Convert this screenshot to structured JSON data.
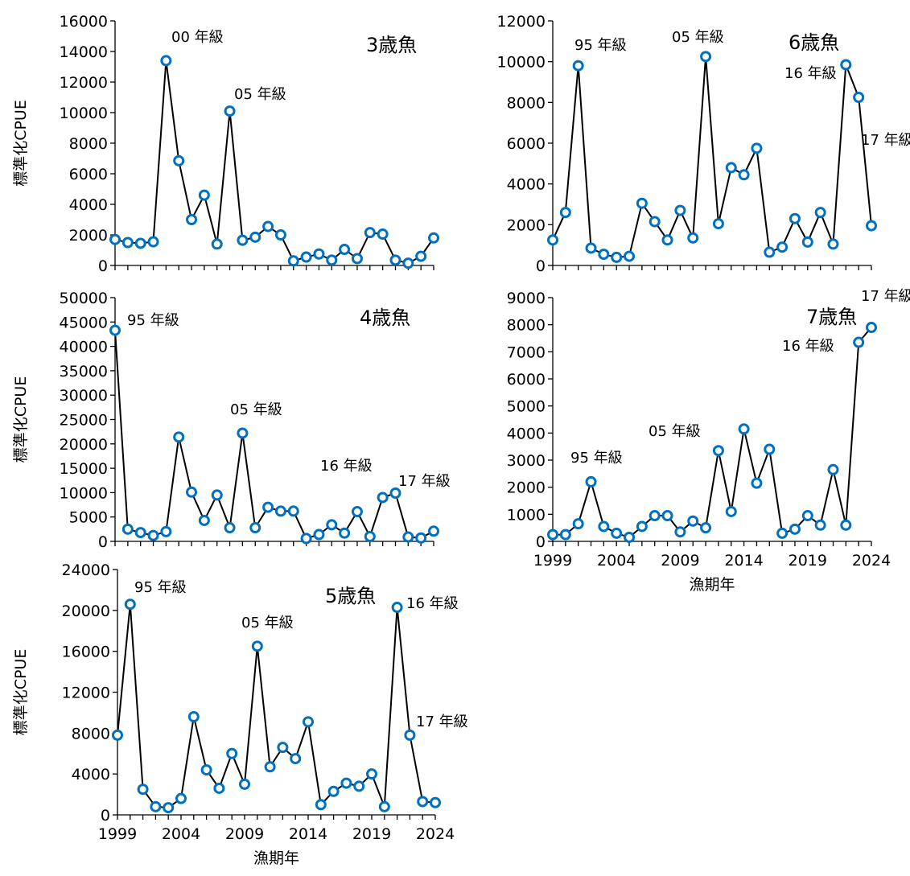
{
  "chart_data": [
    {
      "type": "line",
      "title": "3歳魚",
      "ylabel": "標準化CPUE",
      "xlabel": "",
      "x": [
        1999,
        2000,
        2001,
        2002,
        2003,
        2004,
        2005,
        2006,
        2007,
        2008,
        2009,
        2010,
        2011,
        2012,
        2013,
        2014,
        2015,
        2016,
        2017,
        2018,
        2019,
        2020,
        2021,
        2022,
        2023,
        2024
      ],
      "values": [
        1700,
        1500,
        1450,
        1550,
        13400,
        6850,
        3000,
        4600,
        1400,
        10100,
        1650,
        1850,
        2550,
        2000,
        300,
        550,
        750,
        350,
        1050,
        450,
        2150,
        2050,
        350,
        150,
        600,
        1800
      ],
      "ylim": [
        0,
        16000
      ],
      "yticks": [
        "0",
        "2000",
        "4000",
        "6000",
        "8000",
        "10000",
        "12000",
        "14000",
        "16000"
      ],
      "xticks": [],
      "annotations": [
        {
          "text": "00 年級",
          "x": 2003,
          "y": 13400
        },
        {
          "text": "05 年級",
          "x": 2008,
          "y": 10100
        }
      ]
    },
    {
      "type": "line",
      "title": "4歳魚",
      "ylabel": "標準化CPUE",
      "xlabel": "",
      "x": [
        1999,
        2000,
        2001,
        2002,
        2003,
        2004,
        2005,
        2006,
        2007,
        2008,
        2009,
        2010,
        2011,
        2012,
        2013,
        2014,
        2015,
        2016,
        2017,
        2018,
        2019,
        2020,
        2021,
        2022,
        2023,
        2024
      ],
      "values": [
        43300,
        2500,
        1800,
        1200,
        2000,
        21400,
        10100,
        4300,
        9500,
        2800,
        22200,
        2800,
        7000,
        6200,
        6200,
        600,
        1400,
        3400,
        1700,
        6100,
        1000,
        9000,
        9900,
        900,
        700,
        2100
      ],
      "ylim": [
        0,
        50000
      ],
      "yticks": [
        "0",
        "5000",
        "10000",
        "15000",
        "20000",
        "25000",
        "30000",
        "35000",
        "40000",
        "45000",
        "50000"
      ],
      "xticks": [],
      "annotations": [
        {
          "text": "95 年級",
          "x": 1999,
          "y": 43300
        },
        {
          "text": "05 年級",
          "x": 2009,
          "y": 22200
        },
        {
          "text": "16 年級",
          "x": 2020,
          "y": 9000
        },
        {
          "text": "17 年級",
          "x": 2021,
          "y": 9900
        }
      ]
    },
    {
      "type": "line",
      "title": "5歳魚",
      "ylabel": "標準化CPUE",
      "xlabel": "漁期年",
      "x": [
        1999,
        2000,
        2001,
        2002,
        2003,
        2004,
        2005,
        2006,
        2007,
        2008,
        2009,
        2010,
        2011,
        2012,
        2013,
        2014,
        2015,
        2016,
        2017,
        2018,
        2019,
        2020,
        2021,
        2022,
        2023,
        2024
      ],
      "values": [
        7800,
        20600,
        2500,
        800,
        700,
        1600,
        9600,
        4400,
        2600,
        6000,
        3000,
        16500,
        4700,
        6600,
        5500,
        9100,
        1000,
        2300,
        3100,
        2800,
        4000,
        800,
        20300,
        7800,
        1300,
        1200
      ],
      "ylim": [
        0,
        24000
      ],
      "yticks": [
        "0",
        "4000",
        "8000",
        "12000",
        "16000",
        "20000",
        "24000"
      ],
      "xticks": [
        "1999",
        "2004",
        "2009",
        "2014",
        "2019",
        "2024"
      ],
      "annotations": [
        {
          "text": "95 年級",
          "x": 2000,
          "y": 20600
        },
        {
          "text": "05 年級",
          "x": 2010,
          "y": 16500
        },
        {
          "text": "16 年級",
          "x": 2021,
          "y": 20300
        },
        {
          "text": "17 年級",
          "x": 2022,
          "y": 7800
        }
      ]
    },
    {
      "type": "line",
      "title": "6歳魚",
      "ylabel": "",
      "xlabel": "",
      "x": [
        1999,
        2000,
        2001,
        2002,
        2003,
        2004,
        2005,
        2006,
        2007,
        2008,
        2009,
        2010,
        2011,
        2012,
        2013,
        2014,
        2015,
        2016,
        2017,
        2018,
        2019,
        2020,
        2021,
        2022,
        2023,
        2024
      ],
      "values": [
        1250,
        2600,
        9800,
        850,
        550,
        400,
        450,
        3050,
        2150,
        1250,
        2700,
        1350,
        10250,
        2050,
        4800,
        4450,
        5750,
        650,
        900,
        2300,
        1150,
        2600,
        1050,
        9850,
        8250,
        1950
      ],
      "ylim": [
        0,
        12000
      ],
      "yticks": [
        "0",
        "2000",
        "4000",
        "6000",
        "8000",
        "10000",
        "12000"
      ],
      "xticks": [],
      "annotations": [
        {
          "text": "95 年級",
          "x": 2001,
          "y": 9800
        },
        {
          "text": "05 年級",
          "x": 2011,
          "y": 10250
        },
        {
          "text": "16 年級",
          "x": 2022,
          "y": 9850
        },
        {
          "text": "17 年級",
          "x": 2023,
          "y": 8250
        }
      ]
    },
    {
      "type": "line",
      "title": "7歳魚",
      "ylabel": "",
      "xlabel": "漁期年",
      "x": [
        1999,
        2000,
        2001,
        2002,
        2003,
        2004,
        2005,
        2006,
        2007,
        2008,
        2009,
        2010,
        2011,
        2012,
        2013,
        2014,
        2015,
        2016,
        2017,
        2018,
        2019,
        2020,
        2021,
        2022,
        2023,
        2024
      ],
      "values": [
        250,
        250,
        650,
        2200,
        550,
        300,
        150,
        550,
        950,
        950,
        350,
        750,
        500,
        3350,
        1100,
        4150,
        2150,
        3400,
        300,
        450,
        950,
        600,
        2650,
        600,
        7350,
        7900
      ],
      "ylim": [
        0,
        9000
      ],
      "yticks": [
        "0",
        "1000",
        "2000",
        "3000",
        "4000",
        "5000",
        "6000",
        "7000",
        "8000",
        "9000"
      ],
      "xticks": [
        "1999",
        "2004",
        "2009",
        "2014",
        "2019",
        "2024"
      ],
      "annotations": [
        {
          "text": "95 年級",
          "x": 2002,
          "y": 2200
        },
        {
          "text": "05 年級",
          "x": 2012,
          "y": 3350
        },
        {
          "text": "16 年級",
          "x": 2023,
          "y": 7350
        },
        {
          "text": "17 年級",
          "x": 2024,
          "y": 7900
        }
      ]
    }
  ]
}
